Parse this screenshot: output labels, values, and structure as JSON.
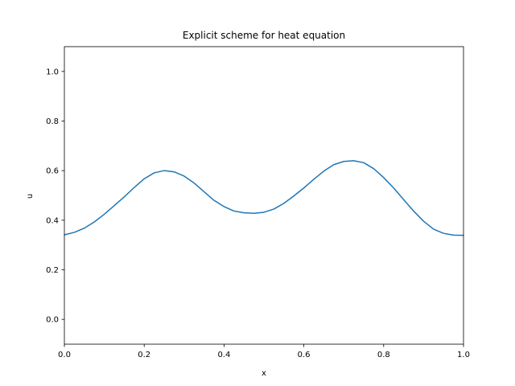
{
  "chart_data": {
    "type": "line",
    "title": "Explicit scheme for heat equation",
    "xlabel": "x",
    "ylabel": "u",
    "xlim": [
      0.0,
      1.0
    ],
    "ylim": [
      -0.1,
      1.1
    ],
    "xticks": [
      "0.0",
      "0.2",
      "0.4",
      "0.6",
      "0.8",
      "1.0"
    ],
    "yticks": [
      "0.0",
      "0.2",
      "0.4",
      "0.6",
      "0.8",
      "1.0"
    ],
    "grid": false,
    "series": [
      {
        "color": "#1f77b4",
        "x": [
          0.0,
          0.025,
          0.05,
          0.075,
          0.1,
          0.125,
          0.15,
          0.175,
          0.2,
          0.225,
          0.25,
          0.275,
          0.3,
          0.325,
          0.35,
          0.375,
          0.4,
          0.425,
          0.45,
          0.475,
          0.5,
          0.525,
          0.55,
          0.575,
          0.6,
          0.625,
          0.65,
          0.675,
          0.7,
          0.725,
          0.75,
          0.775,
          0.8,
          0.825,
          0.85,
          0.875,
          0.9,
          0.925,
          0.95,
          0.975,
          1.0
        ],
        "y": [
          0.341,
          0.351,
          0.368,
          0.393,
          0.424,
          0.459,
          0.494,
          0.532,
          0.567,
          0.591,
          0.6,
          0.595,
          0.578,
          0.55,
          0.515,
          0.48,
          0.455,
          0.437,
          0.43,
          0.428,
          0.432,
          0.445,
          0.468,
          0.498,
          0.53,
          0.565,
          0.598,
          0.624,
          0.637,
          0.64,
          0.632,
          0.608,
          0.572,
          0.53,
          0.483,
          0.437,
          0.396,
          0.364,
          0.347,
          0.34,
          0.339
        ]
      }
    ]
  }
}
